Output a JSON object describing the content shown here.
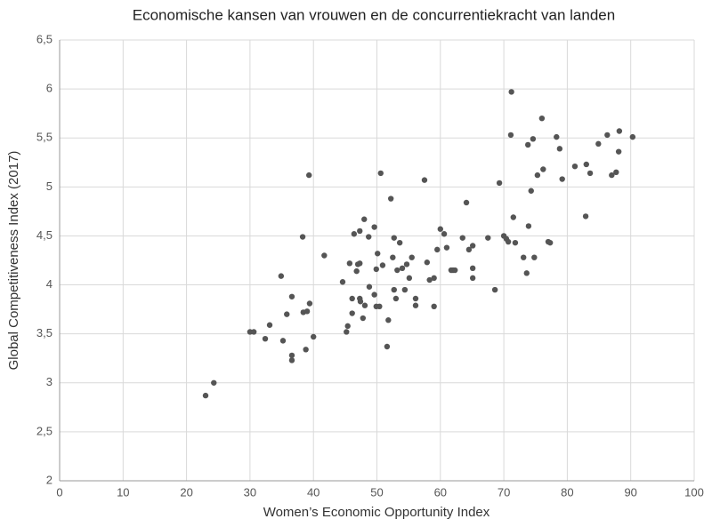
{
  "chart_data": {
    "type": "scatter",
    "title": "Economische kansen van vrouwen en de concurrentiekracht van landen",
    "xlabel": "Women’s Economic Opportunity Index",
    "ylabel": "Global Competitiveness Index (2017)",
    "color": "#555555",
    "grid": true,
    "xlim": [
      0,
      100
    ],
    "ylim": [
      2,
      6.5
    ],
    "xticks": [
      0,
      10,
      20,
      30,
      40,
      50,
      60,
      70,
      80,
      90,
      100
    ],
    "yticks": [
      2,
      {
        "value": 2.5,
        "label": "2,5"
      },
      3,
      {
        "value": 3.5,
        "label": "3,5"
      },
      4,
      {
        "value": 4.5,
        "label": "4,5"
      },
      5,
      {
        "value": 5.5,
        "label": "5,5"
      },
      6,
      {
        "value": 6.5,
        "label": "6,5"
      }
    ],
    "x": [
      23.0,
      24.3,
      30.0,
      30.6,
      32.4,
      33.1,
      34.9,
      35.2,
      35.8,
      36.6,
      36.6,
      36.6,
      38.3,
      38.4,
      38.8,
      39.0,
      39.3,
      39.4,
      40.0,
      41.7,
      44.6,
      45.2,
      45.4,
      45.7,
      46.1,
      46.1,
      46.4,
      46.8,
      47.0,
      47.3,
      47.3,
      47.3,
      47.4,
      47.8,
      48.0,
      48.1,
      48.7,
      48.8,
      49.6,
      49.6,
      49.9,
      49.9,
      50.1,
      50.4,
      50.6,
      50.9,
      51.6,
      51.8,
      52.2,
      52.5,
      52.7,
      52.7,
      53.0,
      53.2,
      53.6,
      54.0,
      54.4,
      54.7,
      55.1,
      55.5,
      56.1,
      56.1,
      57.5,
      57.9,
      58.3,
      59.0,
      59.0,
      59.5,
      60.0,
      60.6,
      61.0,
      61.7,
      62.0,
      62.3,
      63.5,
      64.1,
      64.5,
      65.1,
      65.1,
      65.1,
      67.5,
      68.6,
      69.3,
      70.0,
      70.4,
      70.7,
      71.1,
      71.2,
      71.5,
      71.8,
      73.1,
      73.6,
      73.8,
      73.9,
      74.3,
      74.6,
      74.8,
      75.3,
      76.0,
      76.2,
      77.0,
      77.3,
      78.3,
      78.8,
      79.2,
      81.2,
      82.9,
      83.0,
      83.6,
      84.9,
      86.3,
      87.0,
      87.7,
      88.1,
      88.2,
      90.3
    ],
    "y": [
      2.87,
      3.0,
      3.52,
      3.52,
      3.45,
      3.59,
      4.09,
      3.43,
      3.7,
      3.88,
      3.28,
      3.23,
      4.49,
      3.72,
      3.34,
      3.73,
      5.12,
      3.81,
      3.47,
      4.3,
      4.03,
      3.52,
      3.58,
      4.22,
      3.86,
      3.71,
      4.52,
      4.14,
      4.21,
      4.55,
      4.22,
      3.86,
      3.83,
      3.66,
      4.67,
      3.79,
      4.49,
      3.98,
      4.59,
      3.9,
      4.16,
      3.78,
      4.32,
      3.78,
      5.14,
      4.2,
      3.37,
      3.64,
      4.88,
      4.28,
      4.48,
      3.95,
      3.86,
      4.15,
      4.43,
      4.17,
      3.95,
      4.21,
      4.07,
      4.28,
      3.86,
      3.79,
      5.07,
      4.23,
      4.05,
      3.78,
      4.07,
      4.36,
      4.57,
      4.52,
      4.38,
      4.15,
      4.15,
      4.15,
      4.48,
      4.84,
      4.36,
      4.4,
      4.17,
      4.07,
      4.48,
      3.95,
      5.04,
      4.5,
      4.47,
      4.44,
      5.53,
      5.97,
      4.69,
      4.43,
      4.28,
      4.12,
      5.43,
      4.6,
      4.96,
      5.49,
      4.28,
      5.12,
      5.7,
      5.18,
      4.44,
      4.43,
      5.51,
      5.39,
      5.08,
      5.21,
      4.7,
      5.23,
      5.14,
      5.44,
      5.53,
      5.12,
      5.15,
      5.36,
      5.57,
      5.51
    ]
  }
}
